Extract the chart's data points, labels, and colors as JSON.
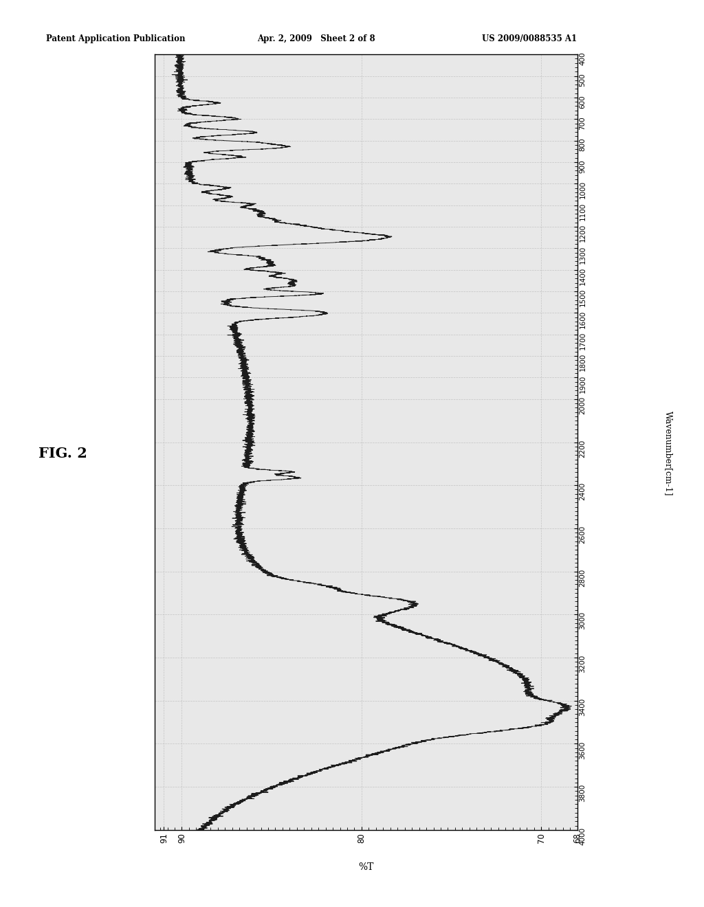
{
  "header_left": "Patent Application Publication",
  "header_mid": "Apr. 2, 2009   Sheet 2 of 8",
  "header_right": "US 2009/0088535 A1",
  "fig_label": "FIG. 2",
  "xlabel": "Wavenumber[cm-1]",
  "ylabel": "%T",
  "wn_min": 400,
  "wn_max": 4000,
  "T_min": 68,
  "T_max": 92,
  "T_ticks": [
    68,
    70,
    80,
    90,
    91
  ],
  "wn_ticks": [
    400,
    500,
    600,
    700,
    800,
    900,
    1000,
    1100,
    1200,
    1300,
    1400,
    1500,
    1600,
    1700,
    1800,
    1900,
    2000,
    2200,
    2400,
    2600,
    2800,
    3000,
    3200,
    3400,
    3600,
    3800,
    4000
  ],
  "grid_color": "#bbbbbb",
  "line_color": "#111111",
  "background_color": "#ffffff",
  "plot_bg_color": "#e8e8e8"
}
